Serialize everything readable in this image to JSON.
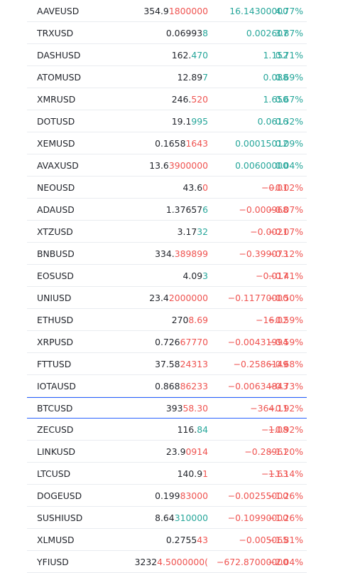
{
  "colors": {
    "up": "#26a69a",
    "down": "#ef5350",
    "highlight": "#2962ff"
  },
  "rows": [
    {
      "symbol": "AAVEUSD",
      "last_base": "354.9",
      "last_tail": "1800000",
      "tail_dir": "down",
      "change": "16.14300000",
      "pct": "4.77%",
      "dir": "up"
    },
    {
      "symbol": "TRXUSD",
      "last_base": "0.06993",
      "last_tail": "8",
      "tail_dir": "up",
      "change": "0.002607",
      "pct": "3.87%",
      "dir": "up"
    },
    {
      "symbol": "DASHUSD",
      "last_base": "162.",
      "last_tail": "470",
      "tail_dir": "up",
      "change": "1.152",
      "pct": "0.71%",
      "dir": "up"
    },
    {
      "symbol": "ATOMUSD",
      "last_base": "12.89",
      "last_tail": "7",
      "tail_dir": "up",
      "change": "0.088",
      "pct": "0.69%",
      "dir": "up"
    },
    {
      "symbol": "XMRUSD",
      "last_base": "246.",
      "last_tail": "520",
      "tail_dir": "down",
      "change": "1.650",
      "pct": "0.67%",
      "dir": "up"
    },
    {
      "symbol": "DOTUSD",
      "last_base": "19.1",
      "last_tail": "995",
      "tail_dir": "up",
      "change": "0.0616",
      "pct": "0.32%",
      "dir": "up"
    },
    {
      "symbol": "XEMUSD",
      "last_base": "0.1658",
      "last_tail": "1643",
      "tail_dir": "down",
      "change": "0.00015012",
      "pct": "0.09%",
      "dir": "up"
    },
    {
      "symbol": "AVAXUSD",
      "last_base": "13.6",
      "last_tail": "3900000",
      "tail_dir": "down",
      "change": "0.00600000",
      "pct": "0.04%",
      "dir": "up"
    },
    {
      "symbol": "NEOUSD",
      "last_base": "43.6",
      "last_tail": "0",
      "tail_dir": "down",
      "change": "−0.01",
      "pct": "−0.02%",
      "dir": "down"
    },
    {
      "symbol": "ADAUSD",
      "last_base": "1.37657",
      "last_tail": "6",
      "tail_dir": "up",
      "change": "−0.000968",
      "pct": "−0.07%",
      "dir": "down"
    },
    {
      "symbol": "XTZUSD",
      "last_base": "3.17",
      "last_tail": "32",
      "tail_dir": "up",
      "change": "−0.0021",
      "pct": "−0.07%",
      "dir": "down"
    },
    {
      "symbol": "BNBUSD",
      "last_base": "334.",
      "last_tail": "389899",
      "tail_dir": "down",
      "change": "−0.399073",
      "pct": "−0.12%",
      "dir": "down"
    },
    {
      "symbol": "EOSUSD",
      "last_base": "4.09",
      "last_tail": "3",
      "tail_dir": "up",
      "change": "−0.017",
      "pct": "−0.41%",
      "dir": "down"
    },
    {
      "symbol": "UNIUSD",
      "last_base": "23.4",
      "last_tail": "2000000",
      "tail_dir": "down",
      "change": "−0.11770000",
      "pct": "−0.50%",
      "dir": "down"
    },
    {
      "symbol": "ETHUSD",
      "last_base": "270",
      "last_tail": "8.69",
      "tail_dir": "down",
      "change": "−16.02",
      "pct": "−0.59%",
      "dir": "down"
    },
    {
      "symbol": "XRPUSD",
      "last_base": "0.726",
      "last_tail": "67770",
      "tail_dir": "down",
      "change": "−0.00431994",
      "pct": "−0.59%",
      "dir": "down"
    },
    {
      "symbol": "FTTUSD",
      "last_base": "37.58",
      "last_tail": "24313",
      "tail_dir": "down",
      "change": "−0.2586149",
      "pct": "−0.68%",
      "dir": "down"
    },
    {
      "symbol": "IOTAUSD",
      "last_base": "0.868",
      "last_tail": "86233",
      "tail_dir": "down",
      "change": "−0.00634843",
      "pct": "−0.73%",
      "dir": "down"
    },
    {
      "symbol": "BTCUSD",
      "last_base": "393",
      "last_tail": "58.30",
      "tail_dir": "down",
      "change": "−364.11",
      "pct": "−0.92%",
      "dir": "down",
      "highlight": true
    },
    {
      "symbol": "ZECUSD",
      "last_base": "116.",
      "last_tail": "84",
      "tail_dir": "up",
      "change": "−1.08",
      "pct": "−0.92%",
      "dir": "down"
    },
    {
      "symbol": "LINKUSD",
      "last_base": "23.9",
      "last_tail": "0914",
      "tail_dir": "down",
      "change": "−0.28961",
      "pct": "−1.20%",
      "dir": "down"
    },
    {
      "symbol": "LTCUSD",
      "last_base": "140.9",
      "last_tail": "1",
      "tail_dir": "down",
      "change": "−1.63",
      "pct": "−1.14%",
      "dir": "down"
    },
    {
      "symbol": "DOGEUSD",
      "last_base": "0.199",
      "last_tail": "83000",
      "tail_dir": "down",
      "change": "−0.00255000",
      "pct": "−1.26%",
      "dir": "down"
    },
    {
      "symbol": "SUSHIUSD",
      "last_base": "8.64",
      "last_tail": "310000",
      "tail_dir": "up",
      "change": "−0.10990000",
      "pct": "−1.26%",
      "dir": "down"
    },
    {
      "symbol": "XLMUSD",
      "last_base": "0.2755",
      "last_tail": "43",
      "tail_dir": "down",
      "change": "−0.005065",
      "pct": "−1.81%",
      "dir": "down"
    },
    {
      "symbol": "YFIUSD",
      "last_base": "3232",
      "last_tail": "4.5000000(",
      "tail_dir": "down",
      "change": "−672.87000000",
      "pct": "−2.04%",
      "dir": "down"
    }
  ]
}
